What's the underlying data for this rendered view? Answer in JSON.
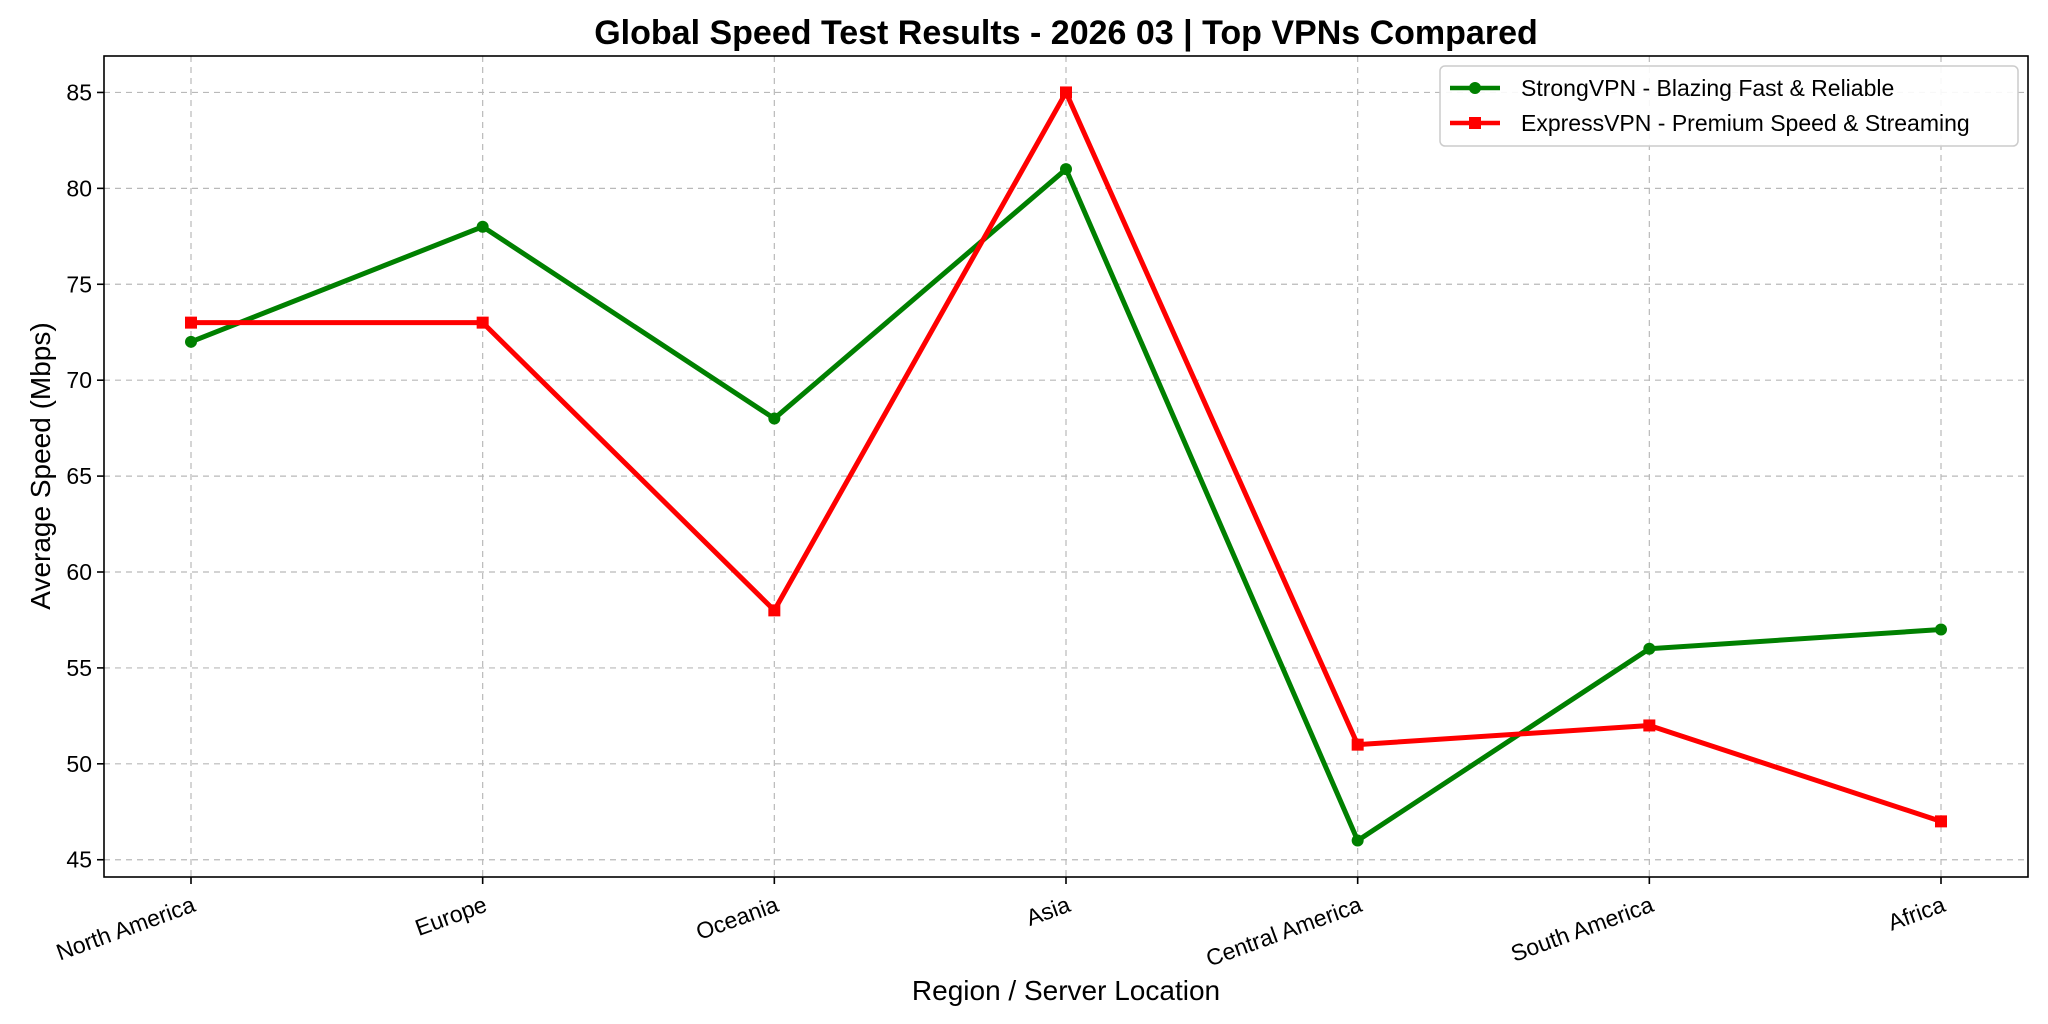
{
  "chart_data": {
    "type": "line",
    "title": "Global Speed Test Results - 2026 03 | Top VPNs Compared",
    "xlabel": "Region / Server Location",
    "ylabel": "Average Speed (Mbps)",
    "categories": [
      "North America",
      "Europe",
      "Oceania",
      "Asia",
      "Central America",
      "South America",
      "Africa"
    ],
    "ylim": [
      44.1,
      86.9
    ],
    "yticks": [
      45,
      50,
      55,
      60,
      65,
      70,
      75,
      80,
      85
    ],
    "grid": true,
    "legend_position": "top-right",
    "series": [
      {
        "name": "StrongVPN - Blazing Fast & Reliable",
        "color": "#008000",
        "marker": "circle",
        "values": [
          72,
          78,
          68,
          81,
          46,
          56,
          57
        ]
      },
      {
        "name": "ExpressVPN - Premium Speed & Streaming",
        "color": "#ff0000",
        "marker": "square",
        "values": [
          73,
          73,
          58,
          85,
          51,
          52,
          47
        ]
      }
    ]
  }
}
